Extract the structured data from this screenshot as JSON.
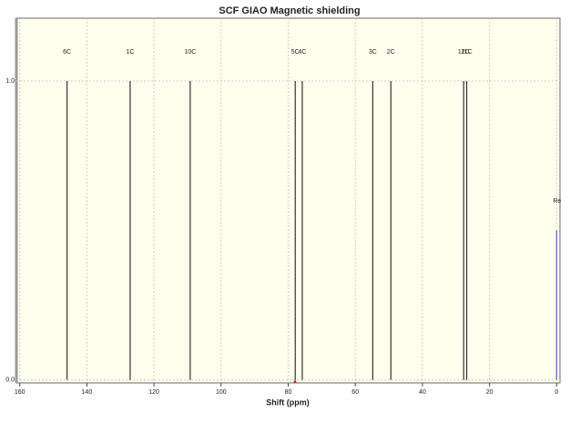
{
  "chart_data": {
    "type": "stick",
    "title": "SCF GIAO Magnetic shielding",
    "x_label": "Shift (ppm)",
    "x": [
      145.9,
      127.1,
      109.2,
      77.9,
      75.8,
      54.8,
      49.4,
      27.7,
      26.8
    ],
    "values": [
      1,
      1,
      1,
      1,
      1,
      1,
      1,
      1,
      1
    ],
    "labels": [
      "6C",
      "1C",
      "10C",
      "5C",
      "4C",
      "3C",
      "2C",
      "12C",
      "11C"
    ],
    "color": "#333333",
    "reference": {
      "label": "Re",
      "x": 0,
      "value": 0.5,
      "color": "#7777dd"
    },
    "xlim": [
      161,
      -1
    ],
    "xticks": [
      160,
      140,
      120,
      100,
      80,
      60,
      40,
      20,
      0
    ],
    "ylim": [
      -0.01,
      1.21
    ],
    "yticks": [
      {
        "value": 0,
        "label": "0.0"
      },
      {
        "value": 1,
        "label": "1.0"
      }
    ],
    "grid": true
  }
}
